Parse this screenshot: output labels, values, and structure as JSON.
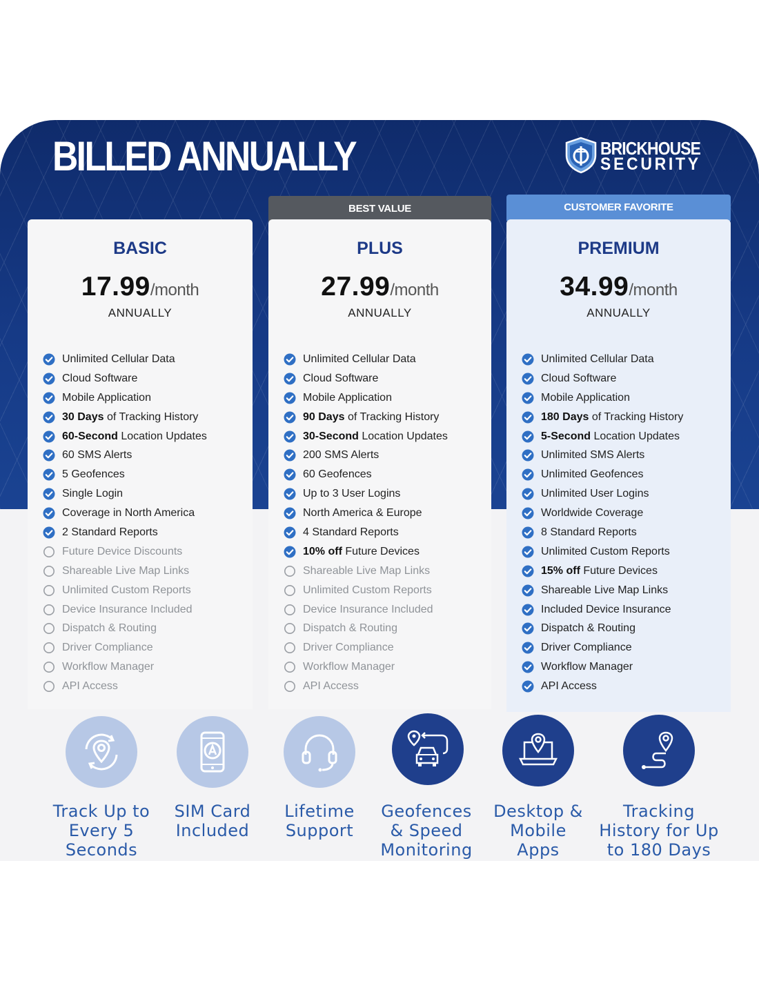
{
  "header": {
    "title": "BILLED ANNUALLY",
    "brand_line1": "BRICKHOUSE",
    "brand_line2": "SECURITY"
  },
  "colors": {
    "banner": "#163a86",
    "tier_name": "#1d3a87",
    "check_on": "#2f6fc4",
    "ribbon_best_value": "#55595f",
    "ribbon_customer_favorite": "#5a8fd6",
    "perk_light": "#b7c8e6",
    "perk_dark": "#1f3f8c",
    "perk_label": "#2a5aa8"
  },
  "plans": [
    {
      "id": "basic",
      "ribbon": "",
      "name": "BASIC",
      "price": "17.99",
      "unit": "/month",
      "billing": "ANNUALLY",
      "features": [
        {
          "bold": "",
          "text": "Unlimited Cellular Data",
          "included": true
        },
        {
          "bold": "",
          "text": "Cloud Software",
          "included": true
        },
        {
          "bold": "",
          "text": "Mobile Application",
          "included": true
        },
        {
          "bold": "30 Days",
          "text": " of Tracking History",
          "included": true
        },
        {
          "bold": "60-Second",
          "text": " Location Updates",
          "included": true
        },
        {
          "bold": "",
          "text": "60 SMS Alerts",
          "included": true
        },
        {
          "bold": "",
          "text": "5 Geofences",
          "included": true
        },
        {
          "bold": "",
          "text": "Single Login",
          "included": true
        },
        {
          "bold": "",
          "text": "Coverage in North America",
          "included": true
        },
        {
          "bold": "",
          "text": "2 Standard Reports",
          "included": true
        },
        {
          "bold": "",
          "text": "Future Device Discounts",
          "included": false
        },
        {
          "bold": "",
          "text": "Shareable Live Map Links",
          "included": false
        },
        {
          "bold": "",
          "text": "Unlimited Custom Reports",
          "included": false
        },
        {
          "bold": "",
          "text": "Device Insurance Included",
          "included": false
        },
        {
          "bold": "",
          "text": "Dispatch & Routing",
          "included": false
        },
        {
          "bold": "",
          "text": "Driver Compliance",
          "included": false
        },
        {
          "bold": "",
          "text": "Workflow Manager",
          "included": false
        },
        {
          "bold": "",
          "text": "API Access",
          "included": false
        }
      ]
    },
    {
      "id": "plus",
      "ribbon": "BEST VALUE",
      "name": "PLUS",
      "price": "27.99",
      "unit": "/month",
      "billing": "ANNUALLY",
      "features": [
        {
          "bold": "",
          "text": "Unlimited Cellular Data",
          "included": true
        },
        {
          "bold": "",
          "text": "Cloud Software",
          "included": true
        },
        {
          "bold": "",
          "text": "Mobile Application",
          "included": true
        },
        {
          "bold": "90 Days",
          "text": " of Tracking History",
          "included": true
        },
        {
          "bold": "30-Second",
          "text": " Location Updates",
          "included": true
        },
        {
          "bold": "",
          "text": "200 SMS Alerts",
          "included": true
        },
        {
          "bold": "",
          "text": "60 Geofences",
          "included": true
        },
        {
          "bold": "",
          "text": "Up to 3 User Logins",
          "included": true
        },
        {
          "bold": "",
          "text": "North America & Europe",
          "included": true
        },
        {
          "bold": "",
          "text": "4 Standard Reports",
          "included": true
        },
        {
          "bold": "10% off",
          "text": " Future Devices",
          "included": true
        },
        {
          "bold": "",
          "text": "Shareable Live Map Links",
          "included": false
        },
        {
          "bold": "",
          "text": "Unlimited Custom Reports",
          "included": false
        },
        {
          "bold": "",
          "text": "Device Insurance Included",
          "included": false
        },
        {
          "bold": "",
          "text": "Dispatch & Routing",
          "included": false
        },
        {
          "bold": "",
          "text": "Driver Compliance",
          "included": false
        },
        {
          "bold": "",
          "text": "Workflow Manager",
          "included": false
        },
        {
          "bold": "",
          "text": "API Access",
          "included": false
        }
      ]
    },
    {
      "id": "premium",
      "ribbon": "CUSTOMER FAVORITE",
      "name": "PREMIUM",
      "price": "34.99",
      "unit": "/month",
      "billing": "ANNUALLY",
      "features": [
        {
          "bold": "",
          "text": "Unlimited Cellular Data",
          "included": true
        },
        {
          "bold": "",
          "text": "Cloud Software",
          "included": true
        },
        {
          "bold": "",
          "text": "Mobile Application",
          "included": true
        },
        {
          "bold": "180 Days",
          "text": " of Tracking History",
          "included": true
        },
        {
          "bold": "5-Second",
          "text": " Location Updates",
          "included": true
        },
        {
          "bold": "",
          "text": "Unlimited SMS Alerts",
          "included": true
        },
        {
          "bold": "",
          "text": "Unlimited Geofences",
          "included": true
        },
        {
          "bold": "",
          "text": "Unlimited User Logins",
          "included": true
        },
        {
          "bold": "",
          "text": "Worldwide Coverage",
          "included": true
        },
        {
          "bold": "",
          "text": "8 Standard Reports",
          "included": true
        },
        {
          "bold": "",
          "text": "Unlimited Custom Reports",
          "included": true
        },
        {
          "bold": "15% off",
          "text": " Future Devices",
          "included": true
        },
        {
          "bold": "",
          "text": "Shareable Live Map Links",
          "included": true
        },
        {
          "bold": "",
          "text": "Included Device Insurance",
          "included": true
        },
        {
          "bold": "",
          "text": "Dispatch & Routing",
          "included": true
        },
        {
          "bold": "",
          "text": "Driver Compliance",
          "included": true
        },
        {
          "bold": "",
          "text": "Workflow Manager",
          "included": true
        },
        {
          "bold": "",
          "text": "API Access",
          "included": true
        }
      ]
    }
  ],
  "perks": [
    {
      "icon": "location-refresh-icon",
      "style": "light",
      "label_lines": [
        "Track Up to",
        "Every 5",
        "Seconds"
      ]
    },
    {
      "icon": "sim-phone-icon",
      "style": "light",
      "label_lines": [
        "SIM Card",
        "Included"
      ]
    },
    {
      "icon": "headset-icon",
      "style": "light",
      "label_lines": [
        "Lifetime",
        "Support"
      ]
    },
    {
      "icon": "car-geofence-icon",
      "style": "dark",
      "label_lines": [
        "Geofences",
        "& Speed",
        "Monitoring"
      ]
    },
    {
      "icon": "laptop-pin-icon",
      "style": "dark",
      "label_lines": [
        "Desktop &",
        "Mobile",
        "Apps"
      ]
    },
    {
      "icon": "route-pin-icon",
      "style": "dark",
      "label_lines": [
        "Tracking",
        "History for Up",
        "to 180 Days"
      ]
    }
  ]
}
